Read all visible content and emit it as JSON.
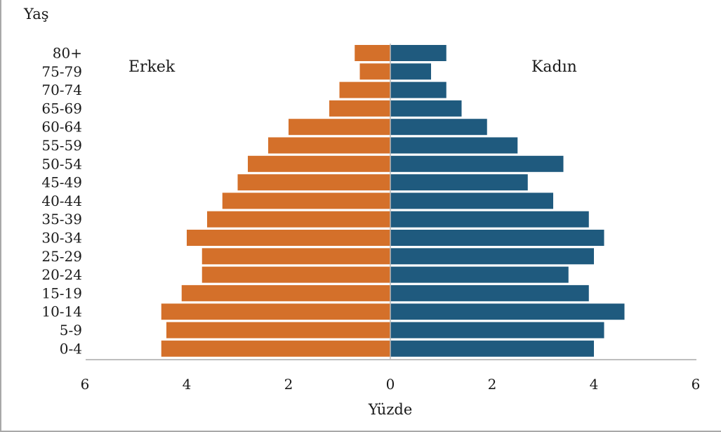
{
  "chart_data": {
    "type": "bar",
    "orientation": "horizontal",
    "subtype": "population-pyramid",
    "y_axis_title": "Yaş",
    "xlabel": "Yüzde",
    "xlim": [
      -6,
      6
    ],
    "x_ticks": [
      -6,
      -4,
      -2,
      0,
      2,
      4,
      6
    ],
    "x_tick_labels": [
      "6",
      "4",
      "2",
      "0",
      "2",
      "4",
      "6"
    ],
    "categories": [
      "80+",
      "75-79",
      "70-74",
      "65-69",
      "60-64",
      "55-59",
      "50-54",
      "45-49",
      "40-44",
      "35-39",
      "30-34",
      "25-29",
      "20-24",
      "15-19",
      "10-14",
      "5-9",
      "0-4"
    ],
    "series": [
      {
        "name": "Erkek",
        "side": "left",
        "color": "#d4702a",
        "values": [
          0.7,
          0.6,
          1.0,
          1.2,
          2.0,
          2.4,
          2.8,
          3.0,
          3.3,
          3.6,
          4.0,
          3.7,
          3.7,
          4.1,
          4.5,
          4.4,
          4.5
        ]
      },
      {
        "name": "Kadın",
        "side": "right",
        "color": "#1f5a7e",
        "values": [
          1.1,
          0.8,
          1.1,
          1.4,
          1.9,
          2.5,
          3.4,
          2.7,
          3.2,
          3.9,
          4.2,
          4.0,
          3.5,
          3.9,
          4.6,
          4.2,
          4.0
        ]
      }
    ],
    "grid": false,
    "legend": "inline labels at top-left and top-right"
  },
  "colors": {
    "axis": "#a9a9a9",
    "center_line": "#b8b8b8",
    "text": "#1a1a1a"
  }
}
